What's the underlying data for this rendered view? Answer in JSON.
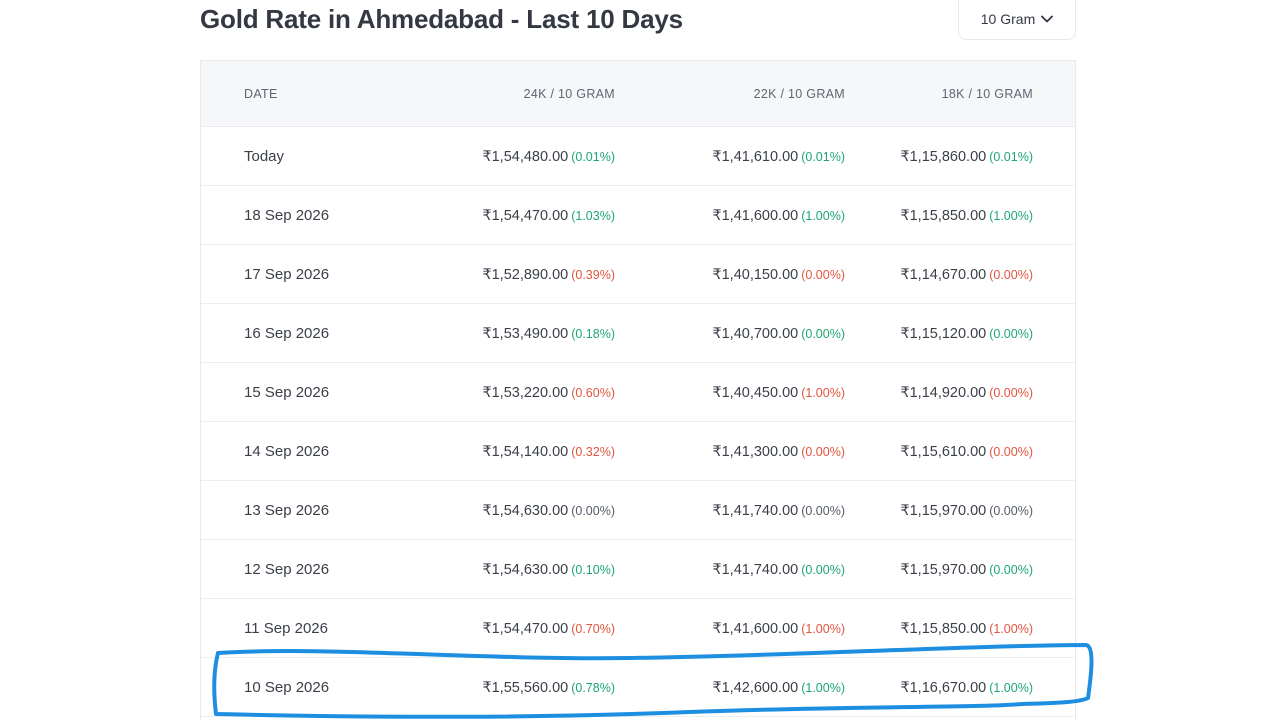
{
  "header": {
    "title": "Gold Rate in Ahmedabad - Last 10 Days",
    "unit_selector": "10 Gram"
  },
  "table": {
    "columns": [
      "DATE",
      "24K / 10 GRAM",
      "22K / 10 GRAM",
      "18K / 10 GRAM"
    ],
    "rows": [
      {
        "date": "Today",
        "k24": "₹1,54,480.00",
        "k24_chg": "(0.01%)",
        "k24_dir": "up",
        "k22": "₹1,41,610.00",
        "k22_chg": "(0.01%)",
        "k22_dir": "up",
        "k18": "₹1,15,860.00",
        "k18_chg": "(0.01%)",
        "k18_dir": "up"
      },
      {
        "date": "18 Sep 2026",
        "k24": "₹1,54,470.00",
        "k24_chg": "(1.03%)",
        "k24_dir": "up",
        "k22": "₹1,41,600.00",
        "k22_chg": "(1.00%)",
        "k22_dir": "up",
        "k18": "₹1,15,850.00",
        "k18_chg": "(1.00%)",
        "k18_dir": "up"
      },
      {
        "date": "17 Sep 2026",
        "k24": "₹1,52,890.00",
        "k24_chg": "(0.39%)",
        "k24_dir": "down",
        "k22": "₹1,40,150.00",
        "k22_chg": "(0.00%)",
        "k22_dir": "down",
        "k18": "₹1,14,670.00",
        "k18_chg": "(0.00%)",
        "k18_dir": "down"
      },
      {
        "date": "16 Sep 2026",
        "k24": "₹1,53,490.00",
        "k24_chg": "(0.18%)",
        "k24_dir": "up",
        "k22": "₹1,40,700.00",
        "k22_chg": "(0.00%)",
        "k22_dir": "up",
        "k18": "₹1,15,120.00",
        "k18_chg": "(0.00%)",
        "k18_dir": "up"
      },
      {
        "date": "15 Sep 2026",
        "k24": "₹1,53,220.00",
        "k24_chg": "(0.60%)",
        "k24_dir": "down",
        "k22": "₹1,40,450.00",
        "k22_chg": "(1.00%)",
        "k22_dir": "down",
        "k18": "₹1,14,920.00",
        "k18_chg": "(0.00%)",
        "k18_dir": "down"
      },
      {
        "date": "14 Sep 2026",
        "k24": "₹1,54,140.00",
        "k24_chg": "(0.32%)",
        "k24_dir": "down",
        "k22": "₹1,41,300.00",
        "k22_chg": "(0.00%)",
        "k22_dir": "down",
        "k18": "₹1,15,610.00",
        "k18_chg": "(0.00%)",
        "k18_dir": "down"
      },
      {
        "date": "13 Sep 2026",
        "k24": "₹1,54,630.00",
        "k24_chg": "(0.00%)",
        "k24_dir": "flat",
        "k22": "₹1,41,740.00",
        "k22_chg": "(0.00%)",
        "k22_dir": "flat",
        "k18": "₹1,15,970.00",
        "k18_chg": "(0.00%)",
        "k18_dir": "flat"
      },
      {
        "date": "12 Sep 2026",
        "k24": "₹1,54,630.00",
        "k24_chg": "(0.10%)",
        "k24_dir": "up",
        "k22": "₹1,41,740.00",
        "k22_chg": "(0.00%)",
        "k22_dir": "up",
        "k18": "₹1,15,970.00",
        "k18_chg": "(0.00%)",
        "k18_dir": "up"
      },
      {
        "date": "11 Sep 2026",
        "k24": "₹1,54,470.00",
        "k24_chg": "(0.70%)",
        "k24_dir": "down",
        "k22": "₹1,41,600.00",
        "k22_chg": "(1.00%)",
        "k22_dir": "down",
        "k18": "₹1,15,850.00",
        "k18_chg": "(1.00%)",
        "k18_dir": "down"
      },
      {
        "date": "10 Sep 2026",
        "k24": "₹1,55,560.00",
        "k24_chg": "(0.78%)",
        "k24_dir": "up",
        "k22": "₹1,42,600.00",
        "k22_chg": "(1.00%)",
        "k22_dir": "up",
        "k18": "₹1,16,670.00",
        "k18_chg": "(1.00%)",
        "k18_dir": "up"
      }
    ]
  },
  "colors": {
    "up": "#1ea672",
    "down": "#e2553f",
    "flat": "#555b66",
    "highlight_stroke": "#1e8fe0"
  },
  "icons": {
    "dropdown": "chevron-down-icon"
  }
}
